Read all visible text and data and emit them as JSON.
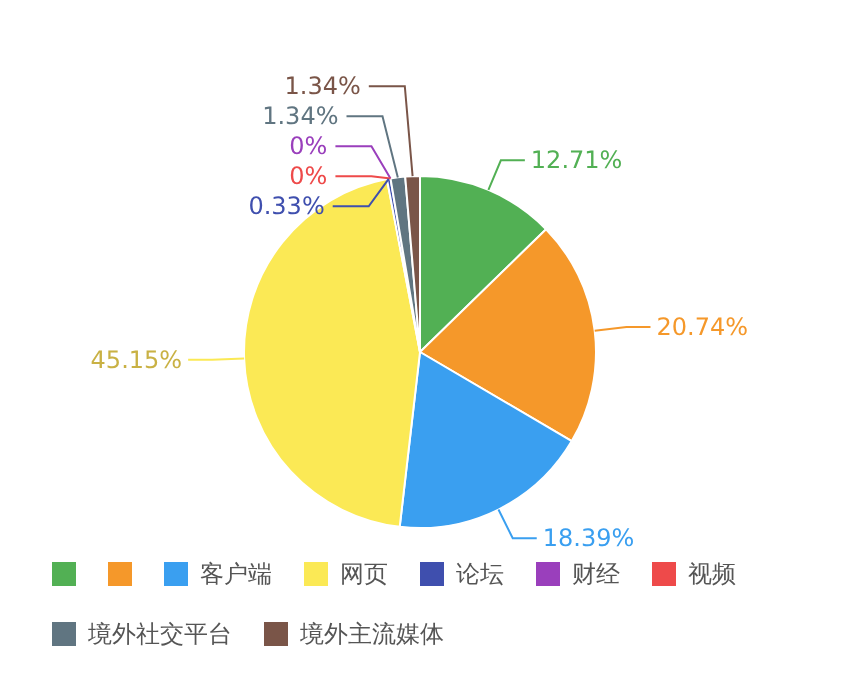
{
  "chart_data": {
    "type": "pie",
    "categories": [
      null,
      null,
      "客户端",
      "网页",
      "论坛",
      "财经",
      "视频",
      "境外社交平台",
      "境外主流媒体"
    ],
    "values": [
      12.71,
      20.74,
      18.39,
      45.15,
      0.33,
      0,
      0,
      1.34,
      1.34
    ],
    "colors": [
      "#52b054",
      "#f5982a",
      "#3a9ff0",
      "#fbe955",
      "#3f4fae",
      "#9a3fbc",
      "#ee4a4a",
      "#607581",
      "#7a5548"
    ],
    "value_labels": [
      "12.71%",
      "20.74%",
      "18.39%",
      "45.15%",
      "0.33%",
      "0%",
      "0%",
      "1.34%",
      "1.34%"
    ],
    "legend": "bottom"
  }
}
